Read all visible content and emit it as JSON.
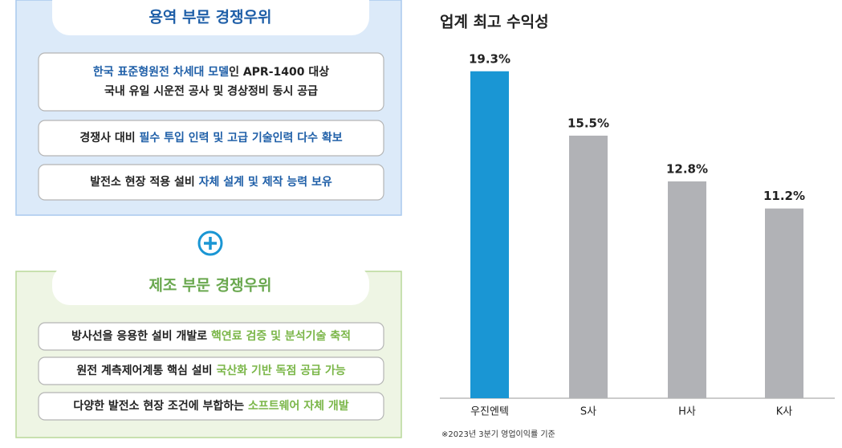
{
  "service_panel": {
    "title": "용역 부문 경쟁우위",
    "items": [
      {
        "lines": [
          [
            {
              "text": "한국 표준형원전 차세대 모델",
              "emphasis": true
            },
            {
              "text": "인 APR-1400 대상",
              "emphasis": false
            }
          ],
          [
            {
              "text": "국내 유일 시운전 공사 및 경상정비 동시 공급",
              "emphasis": false
            }
          ]
        ]
      },
      {
        "lines": [
          [
            {
              "text": "경쟁사 대비 ",
              "emphasis": false
            },
            {
              "text": "필수 투입 인력 및 고급 기술인력 다수 확보",
              "emphasis": true
            }
          ]
        ]
      },
      {
        "lines": [
          [
            {
              "text": "발전소 현장 적용 설비 ",
              "emphasis": false
            },
            {
              "text": "자체 설계 및 제작 능력 보유",
              "emphasis": true
            }
          ]
        ]
      }
    ]
  },
  "manufacturing_panel": {
    "title": "제조 부문 경쟁우위",
    "items": [
      {
        "lines": [
          [
            {
              "text": "방사선을 응용한 설비 개발로 ",
              "emphasis": false
            },
            {
              "text": "핵연료 검증 및 분석기술 축적",
              "emphasis": true
            }
          ]
        ]
      },
      {
        "lines": [
          [
            {
              "text": "원전 계측제어계통 핵심 설비 ",
              "emphasis": false
            },
            {
              "text": "국산화 기반 독점 공급 가능",
              "emphasis": true
            }
          ]
        ]
      },
      {
        "lines": [
          [
            {
              "text": "다양한 발전소 현장 조건에 부합하는 ",
              "emphasis": false
            },
            {
              "text": "소프트웨어 자체 개발",
              "emphasis": true
            }
          ]
        ]
      }
    ]
  },
  "chart_data": {
    "type": "bar",
    "title": "업계 최고 수익성",
    "categories": [
      "우진엔텍",
      "S사",
      "H사",
      "K사"
    ],
    "values": [
      19.3,
      15.5,
      12.8,
      11.2
    ],
    "value_labels": [
      "19.3%",
      "15.5%",
      "12.8%",
      "11.2%"
    ],
    "colors": [
      "#1a96d4",
      "#b1b2b6",
      "#b1b2b6",
      "#b1b2b6"
    ],
    "ylim": [
      0,
      20
    ],
    "note": "※2023년 3분기 영업이익률 기준"
  }
}
